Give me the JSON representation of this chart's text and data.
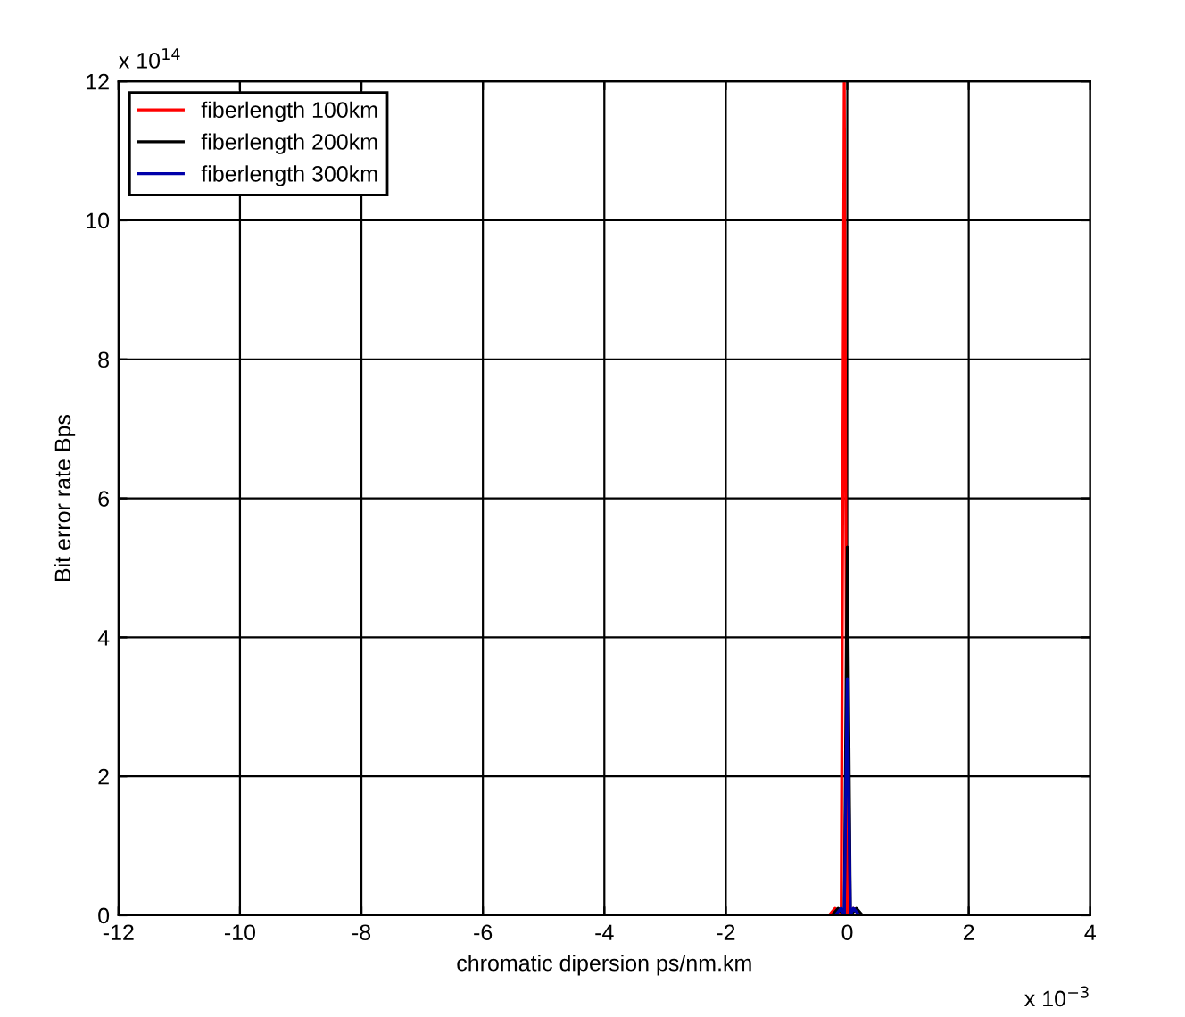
{
  "chart_data": {
    "type": "line",
    "xlabel": "chromatic dipersion ps/nm.km",
    "ylabel": "Bit error rate Bps",
    "xlim": [
      -12,
      4
    ],
    "xticks": [
      -12,
      -10,
      -8,
      -6,
      -4,
      -2,
      0,
      2,
      4
    ],
    "ylim": [
      0,
      12
    ],
    "yticks": [
      0,
      2,
      4,
      6,
      8,
      10,
      12
    ],
    "grid": true,
    "legend": "top left",
    "annotations": [
      "x 10$^{−3}$",
      "x 10$^{14}$"
    ],
    "series": [
      {
        "name": "fiberlength 100km",
        "color": "#ff0000",
        "x": [
          -10,
          -0.3,
          -0.2,
          -0.1,
          -0.05,
          0,
          0.1,
          0.2,
          2
        ],
        "values": [
          0,
          0,
          0.1,
          0,
          12,
          0,
          0.1,
          0,
          0
        ]
      },
      {
        "name": "fiberlength 200km",
        "color": "#000000",
        "x": [
          -10,
          -0.25,
          -0.15,
          -0.05,
          0,
          0.05,
          0.15,
          0.25,
          2
        ],
        "values": [
          0,
          0,
          0.1,
          0,
          5.3,
          0,
          0.1,
          0,
          0
        ]
      },
      {
        "name": "fiberlength 300km",
        "color": "#0000aa",
        "x": [
          -10,
          -0.2,
          -0.1,
          -0.05,
          0,
          0.05,
          0.1,
          0.2,
          2
        ],
        "values": [
          0,
          0,
          0.1,
          0,
          3.4,
          0,
          0.1,
          0,
          0
        ]
      }
    ]
  }
}
